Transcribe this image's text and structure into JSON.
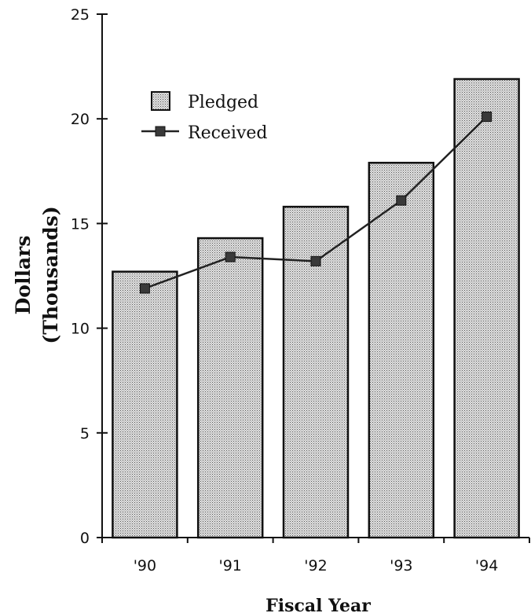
{
  "chart_data": {
    "type": "bar",
    "categories": [
      "'90",
      "'91",
      "'92",
      "'93",
      "'94"
    ],
    "series": [
      {
        "name": "Pledged",
        "kind": "bar",
        "values": [
          12.7,
          14.3,
          15.8,
          17.9,
          21.9
        ]
      },
      {
        "name": "Received",
        "kind": "line",
        "values": [
          11.9,
          13.4,
          13.2,
          16.1,
          20.1
        ]
      }
    ],
    "xlabel": "Fiscal Year",
    "ylabel": [
      "Dollars",
      "(Thousands)"
    ],
    "ylim": [
      0,
      25
    ],
    "yticks": [
      0,
      5,
      10,
      15,
      20,
      25
    ],
    "grid": false,
    "legend_position": "top-left",
    "colors": {
      "bar_fill": "#c9c9c9",
      "bar_stroke": "#111111",
      "line": "#222222",
      "marker": "#3a3a3a"
    }
  }
}
